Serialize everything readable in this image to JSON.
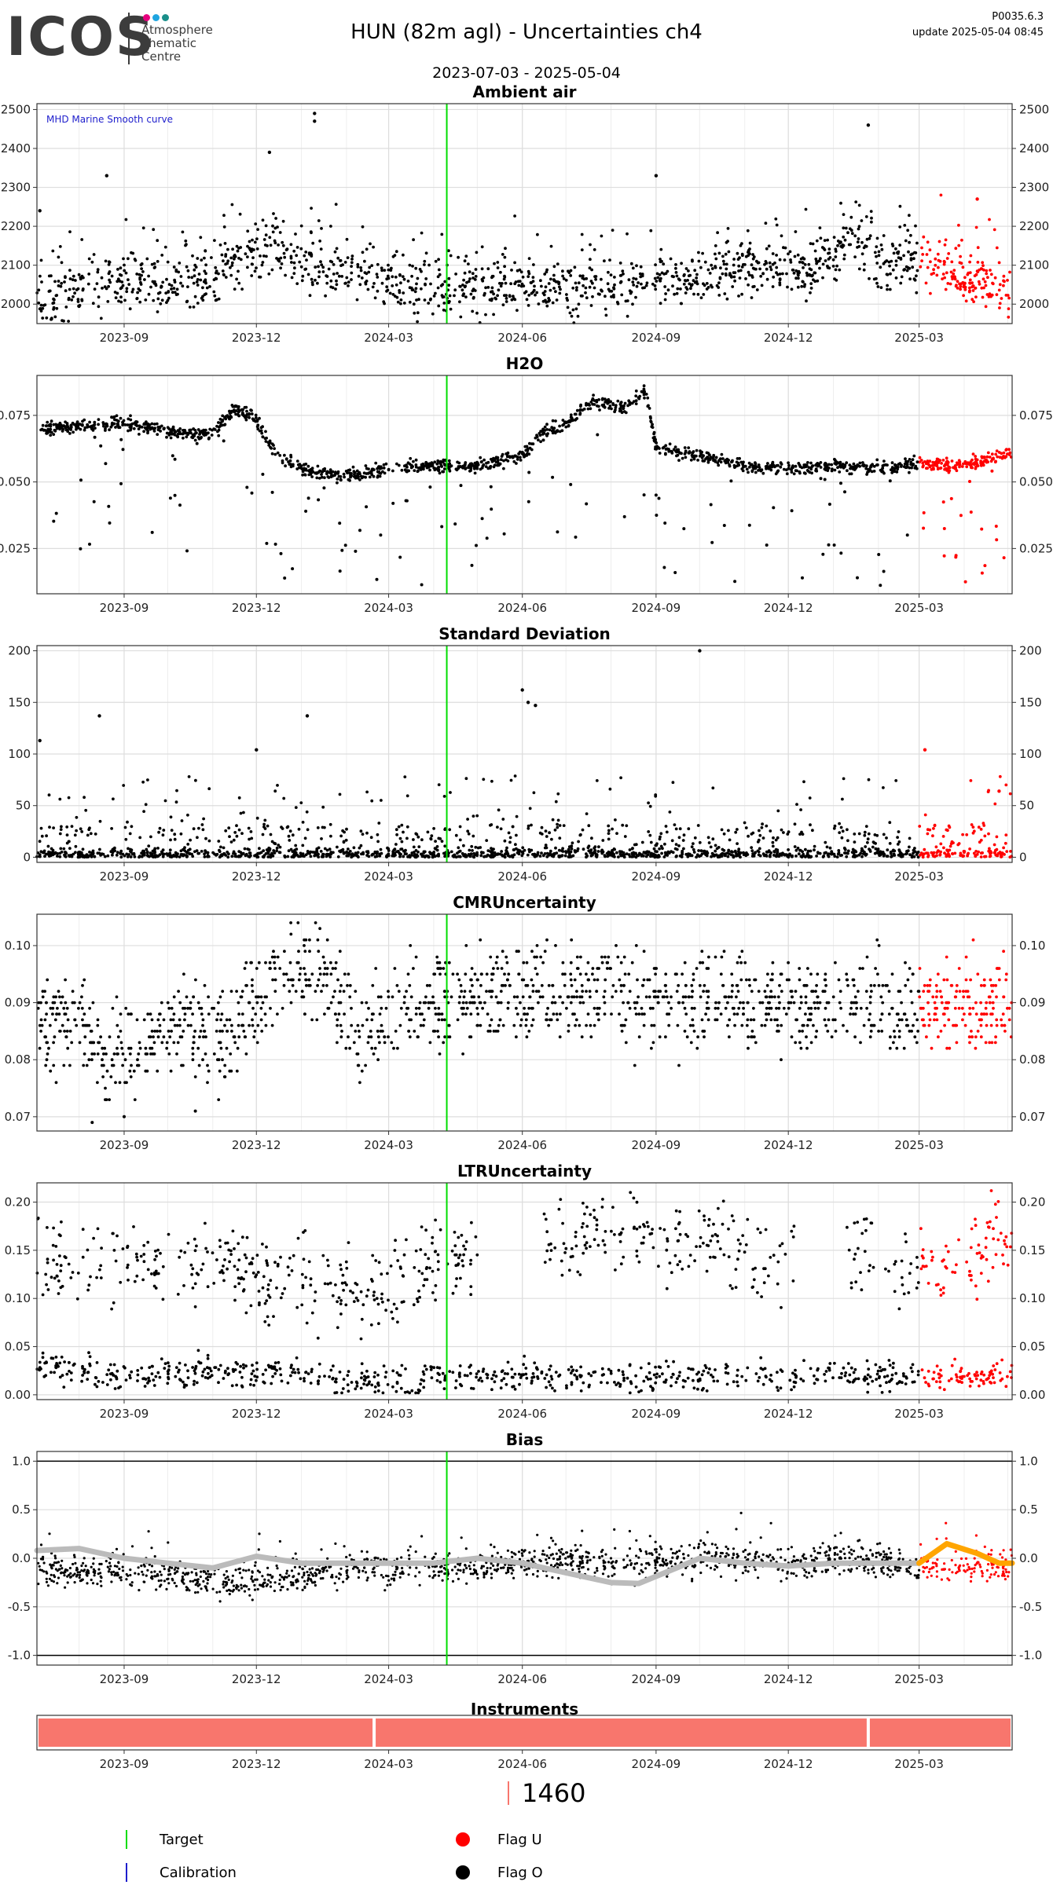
{
  "header": {
    "logo_text": "ICOS",
    "logo_sub": [
      "Atmosphere",
      "Thematic",
      "Centre"
    ],
    "dot_colors": [
      "#e6007e",
      "#1ea5e0",
      "#1a8f8a"
    ],
    "title": "HUN  (82m agl) - Uncertainties ch4",
    "date_range": "2023-07-03 - 2025-05-04",
    "version": "P0035.6.3",
    "update": "update  2025-05-04 08:45"
  },
  "colors": {
    "normal": "#000000",
    "flag_u": "#ff0000",
    "target_line": "#00dd00",
    "calibration": "#1e1ecc",
    "smooth_grey": "#bbbbbb",
    "smooth_orange": "#ffa500",
    "instrument": "#f8766d",
    "grid": "#dddddd"
  },
  "chart_data": [
    {
      "type": "scatter",
      "title": "Ambient air",
      "annotation": "MHD Marine Smooth curve",
      "xlabel": "",
      "ylabel": "",
      "x_ticks": [
        "2023-09",
        "2023-12",
        "2024-03",
        "2024-06",
        "2024-09",
        "2024-12",
        "2025-03"
      ],
      "y_ticks": [
        2000,
        2100,
        2200,
        2300,
        2400,
        2500
      ],
      "ylim": [
        1950,
        2515
      ],
      "target_date": "2024-04-10",
      "flag_u_start": "2025-03-01",
      "series": [
        {
          "values_desc": "",
          "points": [
            [
              "2023-07-10",
              2010
            ],
            [
              "2023-08-01",
              2040
            ],
            [
              "2023-09-01",
              2060
            ],
            [
              "2023-10-01",
              2050
            ],
            [
              "2023-11-01",
              2070
            ],
            [
              "2023-12-01",
              2130
            ],
            [
              "2023-12-15",
              2160
            ],
            [
              "2024-01-01",
              2100
            ],
            [
              "2024-02-01",
              2080
            ],
            [
              "2024-03-01",
              2060
            ],
            [
              "2024-04-01",
              2040
            ],
            [
              "2024-05-01",
              2040
            ],
            [
              "2024-06-01",
              2050
            ],
            [
              "2024-07-01",
              2040
            ],
            [
              "2024-08-01",
              2040
            ],
            [
              "2024-09-01",
              2060
            ],
            [
              "2024-10-01",
              2070
            ],
            [
              "2024-11-01",
              2100
            ],
            [
              "2024-12-01",
              2090
            ],
            [
              "2025-01-01",
              2110
            ],
            [
              "2025-01-15",
              2180
            ],
            [
              "2025-02-01",
              2100
            ],
            [
              "2025-03-01",
              2110
            ],
            [
              "2025-04-01",
              2060
            ],
            [
              "2025-05-01",
              2050
            ]
          ]
        }
      ],
      "outliers": [
        [
          "2023-12-10",
          2390
        ],
        [
          "2024-01-10",
          2490
        ],
        [
          "2024-01-10",
          2470
        ],
        [
          "2023-08-20",
          2330
        ],
        [
          "2024-09-01",
          2330
        ],
        [
          "2025-01-25",
          2460
        ],
        [
          "2025-04-10",
          2270
        ],
        [
          "2023-07-05",
          2240
        ]
      ]
    },
    {
      "type": "scatter",
      "title": "H2O",
      "x_ticks": [
        "2023-09",
        "2023-12",
        "2024-03",
        "2024-06",
        "2024-09",
        "2024-12",
        "2025-03"
      ],
      "y_ticks": [
        0.025,
        0.05,
        0.075
      ],
      "ylim": [
        0.008,
        0.09
      ],
      "target_date": "2024-04-10",
      "flag_u_start": "2025-03-01",
      "series": [
        {
          "points": [
            [
              "2023-07-03",
              0.07
            ],
            [
              "2023-08-01",
              0.071
            ],
            [
              "2023-09-01",
              0.072
            ],
            [
              "2023-10-01",
              0.069
            ],
            [
              "2023-11-01",
              0.068
            ],
            [
              "2023-11-15",
              0.077
            ],
            [
              "2023-12-01",
              0.074
            ],
            [
              "2023-12-15",
              0.06
            ],
            [
              "2024-01-01",
              0.055
            ],
            [
              "2024-02-01",
              0.052
            ],
            [
              "2024-03-01",
              0.055
            ],
            [
              "2024-04-01",
              0.056
            ],
            [
              "2024-05-01",
              0.056
            ],
            [
              "2024-06-01",
              0.06
            ],
            [
              "2024-06-15",
              0.068
            ],
            [
              "2024-07-01",
              0.072
            ],
            [
              "2024-07-20",
              0.08
            ],
            [
              "2024-08-10",
              0.078
            ],
            [
              "2024-08-25",
              0.084
            ],
            [
              "2024-09-01",
              0.063
            ],
            [
              "2024-10-01",
              0.06
            ],
            [
              "2024-11-01",
              0.056
            ],
            [
              "2024-12-01",
              0.055
            ],
            [
              "2025-01-01",
              0.056
            ],
            [
              "2025-02-01",
              0.055
            ],
            [
              "2025-03-01",
              0.057
            ],
            [
              "2025-04-01",
              0.056
            ],
            [
              "2025-05-01",
              0.061
            ]
          ]
        }
      ]
    },
    {
      "type": "scatter",
      "title": "Standard Deviation",
      "x_ticks": [
        "2023-09",
        "2023-12",
        "2024-03",
        "2024-06",
        "2024-09",
        "2024-12",
        "2025-03"
      ],
      "y_ticks": [
        0,
        50,
        100,
        150,
        200
      ],
      "ylim": [
        -5,
        205
      ],
      "target_date": "2024-04-10",
      "flag_u_start": "2025-03-01",
      "outliers": [
        [
          "2023-07-05",
          113
        ],
        [
          "2023-08-15",
          137
        ],
        [
          "2023-12-01",
          104
        ],
        [
          "2024-01-05",
          137
        ],
        [
          "2024-06-01",
          162
        ],
        [
          "2024-06-05",
          150
        ],
        [
          "2024-06-10",
          147
        ],
        [
          "2024-10-01",
          200
        ],
        [
          "2025-03-05",
          104
        ],
        [
          "2025-04-25",
          64
        ]
      ]
    },
    {
      "type": "scatter",
      "title": "CMRUncertainty",
      "x_ticks": [
        "2023-09",
        "2023-12",
        "2024-03",
        "2024-06",
        "2024-09",
        "2024-12",
        "2025-03"
      ],
      "y_ticks": [
        0.07,
        0.08,
        0.09,
        0.1
      ],
      "ylim": [
        0.0675,
        0.1055
      ],
      "target_date": "2024-04-10",
      "flag_u_start": "2025-03-01",
      "series": [
        {
          "points": [
            [
              "2023-07-10",
              0.087
            ],
            [
              "2023-08-01",
              0.088
            ],
            [
              "2023-08-20",
              0.08
            ],
            [
              "2023-09-15",
              0.083
            ],
            [
              "2023-10-15",
              0.087
            ],
            [
              "2023-11-10",
              0.083
            ],
            [
              "2023-12-10",
              0.094
            ],
            [
              "2024-01-10",
              0.095
            ],
            [
              "2024-01-25",
              0.093
            ],
            [
              "2024-02-10",
              0.083
            ],
            [
              "2024-03-01",
              0.088
            ],
            [
              "2024-04-01",
              0.09
            ],
            [
              "2024-05-01",
              0.091
            ],
            [
              "2024-06-01",
              0.092
            ],
            [
              "2024-07-01",
              0.091
            ],
            [
              "2024-08-01",
              0.092
            ],
            [
              "2024-09-01",
              0.09
            ],
            [
              "2024-10-01",
              0.091
            ],
            [
              "2024-11-01",
              0.09
            ],
            [
              "2024-12-01",
              0.09
            ],
            [
              "2025-01-01",
              0.09
            ],
            [
              "2025-02-01",
              0.09
            ],
            [
              "2025-03-15",
              0.089
            ],
            [
              "2025-04-15",
              0.09
            ]
          ]
        }
      ]
    },
    {
      "type": "scatter",
      "title": "LTRUncertainty",
      "x_ticks": [
        "2023-09",
        "2023-12",
        "2024-03",
        "2024-06",
        "2024-09",
        "2024-12",
        "2025-03"
      ],
      "y_ticks": [
        0.0,
        0.05,
        0.1,
        0.15,
        0.2
      ],
      "ylim": [
        -0.005,
        0.22
      ],
      "target_date": "2024-04-10",
      "flag_u_start": "2025-03-01",
      "series": [
        {
          "name": "upper",
          "points": [
            [
              "2023-07-15",
              0.14
            ],
            [
              "2023-08-15",
              0.135
            ],
            [
              "2023-10-20",
              0.14
            ],
            [
              "2023-11-20",
              0.13
            ],
            [
              "2024-01-10",
              0.115
            ],
            [
              "2024-02-10",
              0.105
            ],
            [
              "2024-03-01",
              0.115
            ],
            [
              "2024-04-01",
              0.145
            ],
            [
              "2024-06-25",
              0.16
            ],
            [
              "2024-07-20",
              0.175
            ],
            [
              "2024-08-15",
              0.18
            ],
            [
              "2024-09-10",
              0.15
            ],
            [
              "2024-10-10",
              0.165
            ],
            [
              "2024-11-10",
              0.135
            ],
            [
              "2025-01-20",
              0.15
            ],
            [
              "2025-03-15",
              0.125
            ],
            [
              "2025-04-20",
              0.16
            ]
          ]
        },
        {
          "name": "lower",
          "points": [
            [
              "2023-07-05",
              0.03
            ],
            [
              "2023-09-01",
              0.02
            ],
            [
              "2023-11-01",
              0.025
            ],
            [
              "2024-01-01",
              0.02
            ],
            [
              "2024-03-01",
              0.015
            ],
            [
              "2024-05-01",
              0.02
            ],
            [
              "2024-06-15",
              0.018
            ],
            [
              "2024-10-15",
              0.018
            ],
            [
              "2025-01-01",
              0.02
            ],
            [
              "2025-04-01",
              0.02
            ]
          ]
        }
      ]
    },
    {
      "type": "line",
      "title": "Bias",
      "x_ticks": [
        "2023-09",
        "2023-12",
        "2024-03",
        "2024-06",
        "2024-09",
        "2024-12",
        "2025-03"
      ],
      "y_ticks": [
        -1.0,
        -0.5,
        0.0,
        0.5,
        1.0
      ],
      "ylim": [
        -1.1,
        1.1
      ],
      "hlines": [
        -1.0,
        1.0
      ],
      "target_date": "2024-04-10",
      "flag_u_start": "2025-03-01",
      "series": [
        {
          "name": "smooth",
          "color": "grey",
          "points": [
            [
              "2023-07-03",
              0.08
            ],
            [
              "2023-08-01",
              0.1
            ],
            [
              "2023-09-01",
              0.0
            ],
            [
              "2023-10-01",
              -0.05
            ],
            [
              "2023-11-01",
              -0.1
            ],
            [
              "2023-12-01",
              0.02
            ],
            [
              "2024-01-01",
              -0.05
            ],
            [
              "2024-02-01",
              -0.05
            ],
            [
              "2024-03-01",
              -0.05
            ],
            [
              "2024-04-01",
              -0.05
            ],
            [
              "2024-05-01",
              0.0
            ],
            [
              "2024-06-01",
              -0.05
            ],
            [
              "2024-07-01",
              -0.15
            ],
            [
              "2024-08-01",
              -0.25
            ],
            [
              "2024-08-20",
              -0.26
            ],
            [
              "2024-09-15",
              -0.1
            ],
            [
              "2024-10-01",
              0.0
            ],
            [
              "2024-11-01",
              -0.05
            ],
            [
              "2024-12-01",
              -0.08
            ],
            [
              "2025-01-01",
              -0.05
            ],
            [
              "2025-02-01",
              -0.05
            ],
            [
              "2025-03-01",
              -0.05
            ]
          ]
        },
        {
          "name": "smooth_flagged",
          "color": "orange",
          "points": [
            [
              "2025-03-01",
              -0.05
            ],
            [
              "2025-03-20",
              0.15
            ],
            [
              "2025-04-10",
              0.05
            ],
            [
              "2025-04-25",
              -0.05
            ],
            [
              "2025-05-04",
              -0.05
            ]
          ]
        },
        {
          "name": "data",
          "points": [
            [
              "2023-07-05",
              -0.1
            ],
            [
              "2023-08-01",
              -0.15
            ],
            [
              "2023-09-01",
              -0.1
            ],
            [
              "2023-10-15",
              -0.2
            ],
            [
              "2023-11-15",
              -0.25
            ],
            [
              "2023-12-15",
              -0.2
            ],
            [
              "2024-01-15",
              -0.15
            ],
            [
              "2024-02-15",
              -0.1
            ],
            [
              "2024-03-15",
              -0.1
            ],
            [
              "2024-04-15",
              -0.08
            ],
            [
              "2024-05-01",
              -0.1
            ],
            [
              "2024-06-01",
              -0.05
            ],
            [
              "2024-07-01",
              -0.03
            ],
            [
              "2024-08-01",
              -0.06
            ],
            [
              "2024-09-01",
              -0.02
            ],
            [
              "2024-10-01",
              -0.01
            ],
            [
              "2024-11-01",
              -0.02
            ],
            [
              "2024-12-01",
              -0.05
            ],
            [
              "2025-01-01",
              -0.03
            ],
            [
              "2025-02-01",
              -0.03
            ],
            [
              "2025-03-15",
              -0.1
            ],
            [
              "2025-04-15",
              -0.1
            ]
          ]
        }
      ]
    },
    {
      "type": "bar",
      "title": "Instruments",
      "x_ticks": [
        "2023-09",
        "2023-12",
        "2024-03",
        "2024-06",
        "2024-09",
        "2024-12",
        "2025-03"
      ],
      "segments": [
        [
          "2023-07-03",
          "2024-02-20"
        ],
        [
          "2024-02-20",
          "2025-01-25"
        ],
        [
          "2025-01-25",
          "2025-05-04"
        ]
      ],
      "instrument_id": "1460"
    }
  ],
  "legend": {
    "target": "Target",
    "calibration": "Calibration",
    "flag_u": "Flag U",
    "flag_o": "Flag O"
  }
}
